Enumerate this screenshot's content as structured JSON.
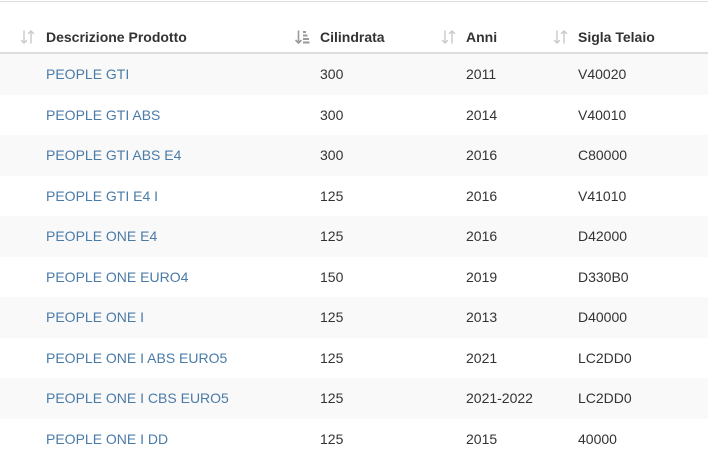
{
  "table": {
    "columns": [
      {
        "label": "Descrizione Prodotto",
        "sort_icon": "sort-both-icon"
      },
      {
        "label": "Cilindrata",
        "sort_icon": "sort-ascending-active-icon"
      },
      {
        "label": "Anni",
        "sort_icon": "sort-both-icon"
      },
      {
        "label": "Sigla Telaio",
        "sort_icon": "sort-both-icon"
      }
    ],
    "rows": [
      {
        "descrizione": "PEOPLE GTI",
        "cilindrata": "300",
        "anni": "2011",
        "sigla": "V40020"
      },
      {
        "descrizione": "PEOPLE GTI ABS",
        "cilindrata": "300",
        "anni": "2014",
        "sigla": "V40010"
      },
      {
        "descrizione": "PEOPLE GTI ABS E4",
        "cilindrata": "300",
        "anni": "2016",
        "sigla": "C80000"
      },
      {
        "descrizione": "PEOPLE GTI E4 I",
        "cilindrata": "125",
        "anni": "2016",
        "sigla": "V41010"
      },
      {
        "descrizione": "PEOPLE ONE E4",
        "cilindrata": "125",
        "anni": "2016",
        "sigla": "D42000"
      },
      {
        "descrizione": "PEOPLE ONE EURO4",
        "cilindrata": "150",
        "anni": "2019",
        "sigla": "D330B0"
      },
      {
        "descrizione": "PEOPLE ONE I",
        "cilindrata": "125",
        "anni": "2013",
        "sigla": "D40000"
      },
      {
        "descrizione": "PEOPLE ONE I ABS EURO5",
        "cilindrata": "125",
        "anni": "2021",
        "sigla": "LC2DD0"
      },
      {
        "descrizione": "PEOPLE ONE I CBS EURO5",
        "cilindrata": "125",
        "anni": "2021-2022",
        "sigla": "LC2DD0"
      },
      {
        "descrizione": "PEOPLE ONE I DD",
        "cilindrata": "125",
        "anni": "2015",
        "sigla": "40000"
      }
    ]
  },
  "colors": {
    "link": "#4a7ba8",
    "stripe": "#f9f9f9",
    "header_text": "#333333",
    "icon_inactive": "#c9c9c9",
    "icon_active": "#9a9a9a"
  }
}
